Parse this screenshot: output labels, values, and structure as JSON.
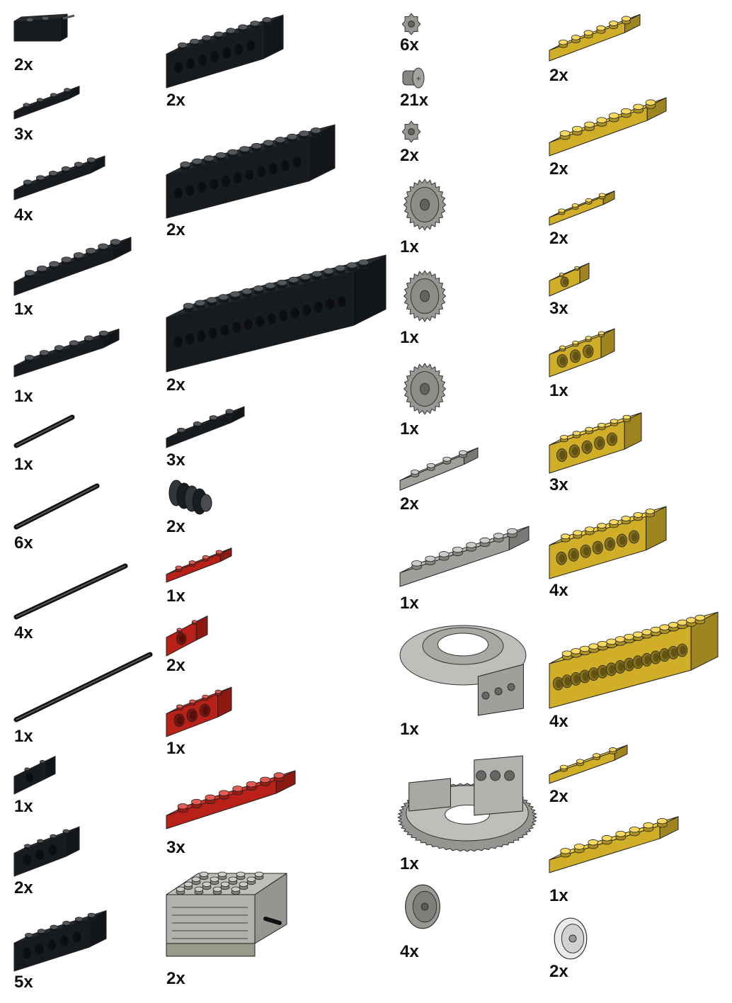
{
  "colors": {
    "black": "#1b2026",
    "red": "#d9261c",
    "yellow": "#f5cd2f",
    "light_gray": "#b9bcb6",
    "dark_gray": "#8a8d88",
    "white": "#e8e8e8"
  },
  "parts": [
    {
      "id": "black-brick-2x2-pin",
      "color": "black",
      "shape": "small-block",
      "qty": "2x"
    },
    {
      "id": "black-plate-1x4",
      "color": "black",
      "shape": "plate",
      "studs": 4,
      "qty": "3x"
    },
    {
      "id": "black-plate-1x6",
      "color": "black",
      "shape": "plate",
      "studs": 6,
      "qty": "4x"
    },
    {
      "id": "black-plate-1x8",
      "color": "black",
      "shape": "plate",
      "studs": 8,
      "qty": "1x"
    },
    {
      "id": "black-plate-2x6",
      "color": "black",
      "shape": "plate",
      "studs": 6,
      "qty": "1x"
    },
    {
      "id": "black-axle-4",
      "color": "black",
      "shape": "axle",
      "qty": "1x"
    },
    {
      "id": "black-axle-6",
      "color": "black",
      "shape": "axle",
      "qty": "6x"
    },
    {
      "id": "black-axle-8",
      "color": "black",
      "shape": "axle",
      "qty": "4x"
    },
    {
      "id": "black-axle-10",
      "color": "black",
      "shape": "axle",
      "qty": "1x"
    },
    {
      "id": "black-technic-brick-1x2",
      "color": "black",
      "shape": "technic-brick",
      "holes": 1,
      "qty": "1x"
    },
    {
      "id": "black-technic-brick-1x4",
      "color": "black",
      "shape": "technic-brick",
      "holes": 3,
      "qty": "2x"
    },
    {
      "id": "black-technic-brick-1x6",
      "color": "black",
      "shape": "technic-brick",
      "holes": 5,
      "qty": "5x"
    },
    {
      "id": "black-technic-brick-1x8",
      "color": "black",
      "shape": "technic-brick",
      "holes": 7,
      "qty": "2x"
    },
    {
      "id": "black-technic-brick-1x12",
      "color": "black",
      "shape": "technic-brick",
      "holes": 11,
      "qty": "2x"
    },
    {
      "id": "black-technic-brick-1x16",
      "color": "black",
      "shape": "technic-brick",
      "holes": 15,
      "qty": "2x"
    },
    {
      "id": "black-plate-2x4",
      "color": "black",
      "shape": "plate",
      "studs": 4,
      "qty": "3x"
    },
    {
      "id": "black-worm-gear",
      "color": "black",
      "shape": "worm",
      "qty": "2x"
    },
    {
      "id": "red-plate-1x4",
      "color": "red",
      "shape": "plate",
      "studs": 4,
      "qty": "1x"
    },
    {
      "id": "red-technic-brick-1x2",
      "color": "red",
      "shape": "technic-brick",
      "holes": 1,
      "qty": "2x"
    },
    {
      "id": "red-technic-brick-1x4",
      "color": "red",
      "shape": "technic-brick",
      "holes": 3,
      "qty": "1x"
    },
    {
      "id": "red-plate-2x8",
      "color": "red",
      "shape": "plate",
      "studs": 8,
      "qty": "3x"
    },
    {
      "id": "gray-motor",
      "color": "light_gray",
      "shape": "motor",
      "qty": "2x"
    },
    {
      "id": "gray-gear-8",
      "color": "dark_gray",
      "shape": "gear-small",
      "qty": "6x"
    },
    {
      "id": "gray-bush",
      "color": "dark_gray",
      "shape": "bush",
      "qty": "21x"
    },
    {
      "id": "gray-gear-8-alt",
      "color": "dark_gray",
      "shape": "gear-small",
      "qty": "2x"
    },
    {
      "id": "gray-gear-24-a",
      "color": "dark_gray",
      "shape": "gear",
      "qty": "1x"
    },
    {
      "id": "gray-gear-24-b",
      "color": "dark_gray",
      "shape": "gear",
      "qty": "1x"
    },
    {
      "id": "gray-gear-24-c",
      "color": "dark_gray",
      "shape": "gear",
      "qty": "1x"
    },
    {
      "id": "gray-plate-2x4",
      "color": "light_gray",
      "shape": "plate",
      "studs": 4,
      "qty": "2x"
    },
    {
      "id": "gray-plate-2x8",
      "color": "light_gray",
      "shape": "plate",
      "studs": 8,
      "qty": "1x"
    },
    {
      "id": "gray-turntable-top",
      "color": "light_gray",
      "shape": "turntable-top",
      "qty": "1x"
    },
    {
      "id": "gray-turntable-base",
      "color": "light_gray",
      "shape": "turntable-base",
      "qty": "1x"
    },
    {
      "id": "gray-pulley",
      "color": "dark_gray",
      "shape": "pulley",
      "qty": "4x"
    },
    {
      "id": "yellow-plate-1x6",
      "color": "yellow",
      "shape": "plate",
      "studs": 6,
      "qty": "2x"
    },
    {
      "id": "yellow-plate-1x8",
      "color": "yellow",
      "shape": "plate",
      "studs": 8,
      "qty": "2x"
    },
    {
      "id": "yellow-plate-2x4",
      "color": "yellow",
      "shape": "plate",
      "studs": 4,
      "qty": "2x"
    },
    {
      "id": "yellow-technic-brick-1x2",
      "color": "yellow",
      "shape": "technic-brick",
      "holes": 1,
      "qty": "3x"
    },
    {
      "id": "yellow-technic-brick-1x4",
      "color": "yellow",
      "shape": "technic-brick",
      "holes": 3,
      "qty": "1x"
    },
    {
      "id": "yellow-technic-brick-1x6",
      "color": "yellow",
      "shape": "technic-brick",
      "holes": 5,
      "qty": "3x"
    },
    {
      "id": "yellow-technic-brick-1x8",
      "color": "yellow",
      "shape": "technic-brick",
      "holes": 7,
      "qty": "4x"
    },
    {
      "id": "yellow-technic-brick-1x16",
      "color": "yellow",
      "shape": "technic-brick",
      "holes": 15,
      "qty": "4x"
    },
    {
      "id": "yellow-plate-2x4-b",
      "color": "yellow",
      "shape": "plate",
      "studs": 4,
      "qty": "2x"
    },
    {
      "id": "yellow-plate-1x8-b",
      "color": "yellow",
      "shape": "plate",
      "studs": 8,
      "qty": "1x"
    },
    {
      "id": "white-pulley",
      "color": "white",
      "shape": "pulley",
      "qty": "2x"
    }
  ]
}
